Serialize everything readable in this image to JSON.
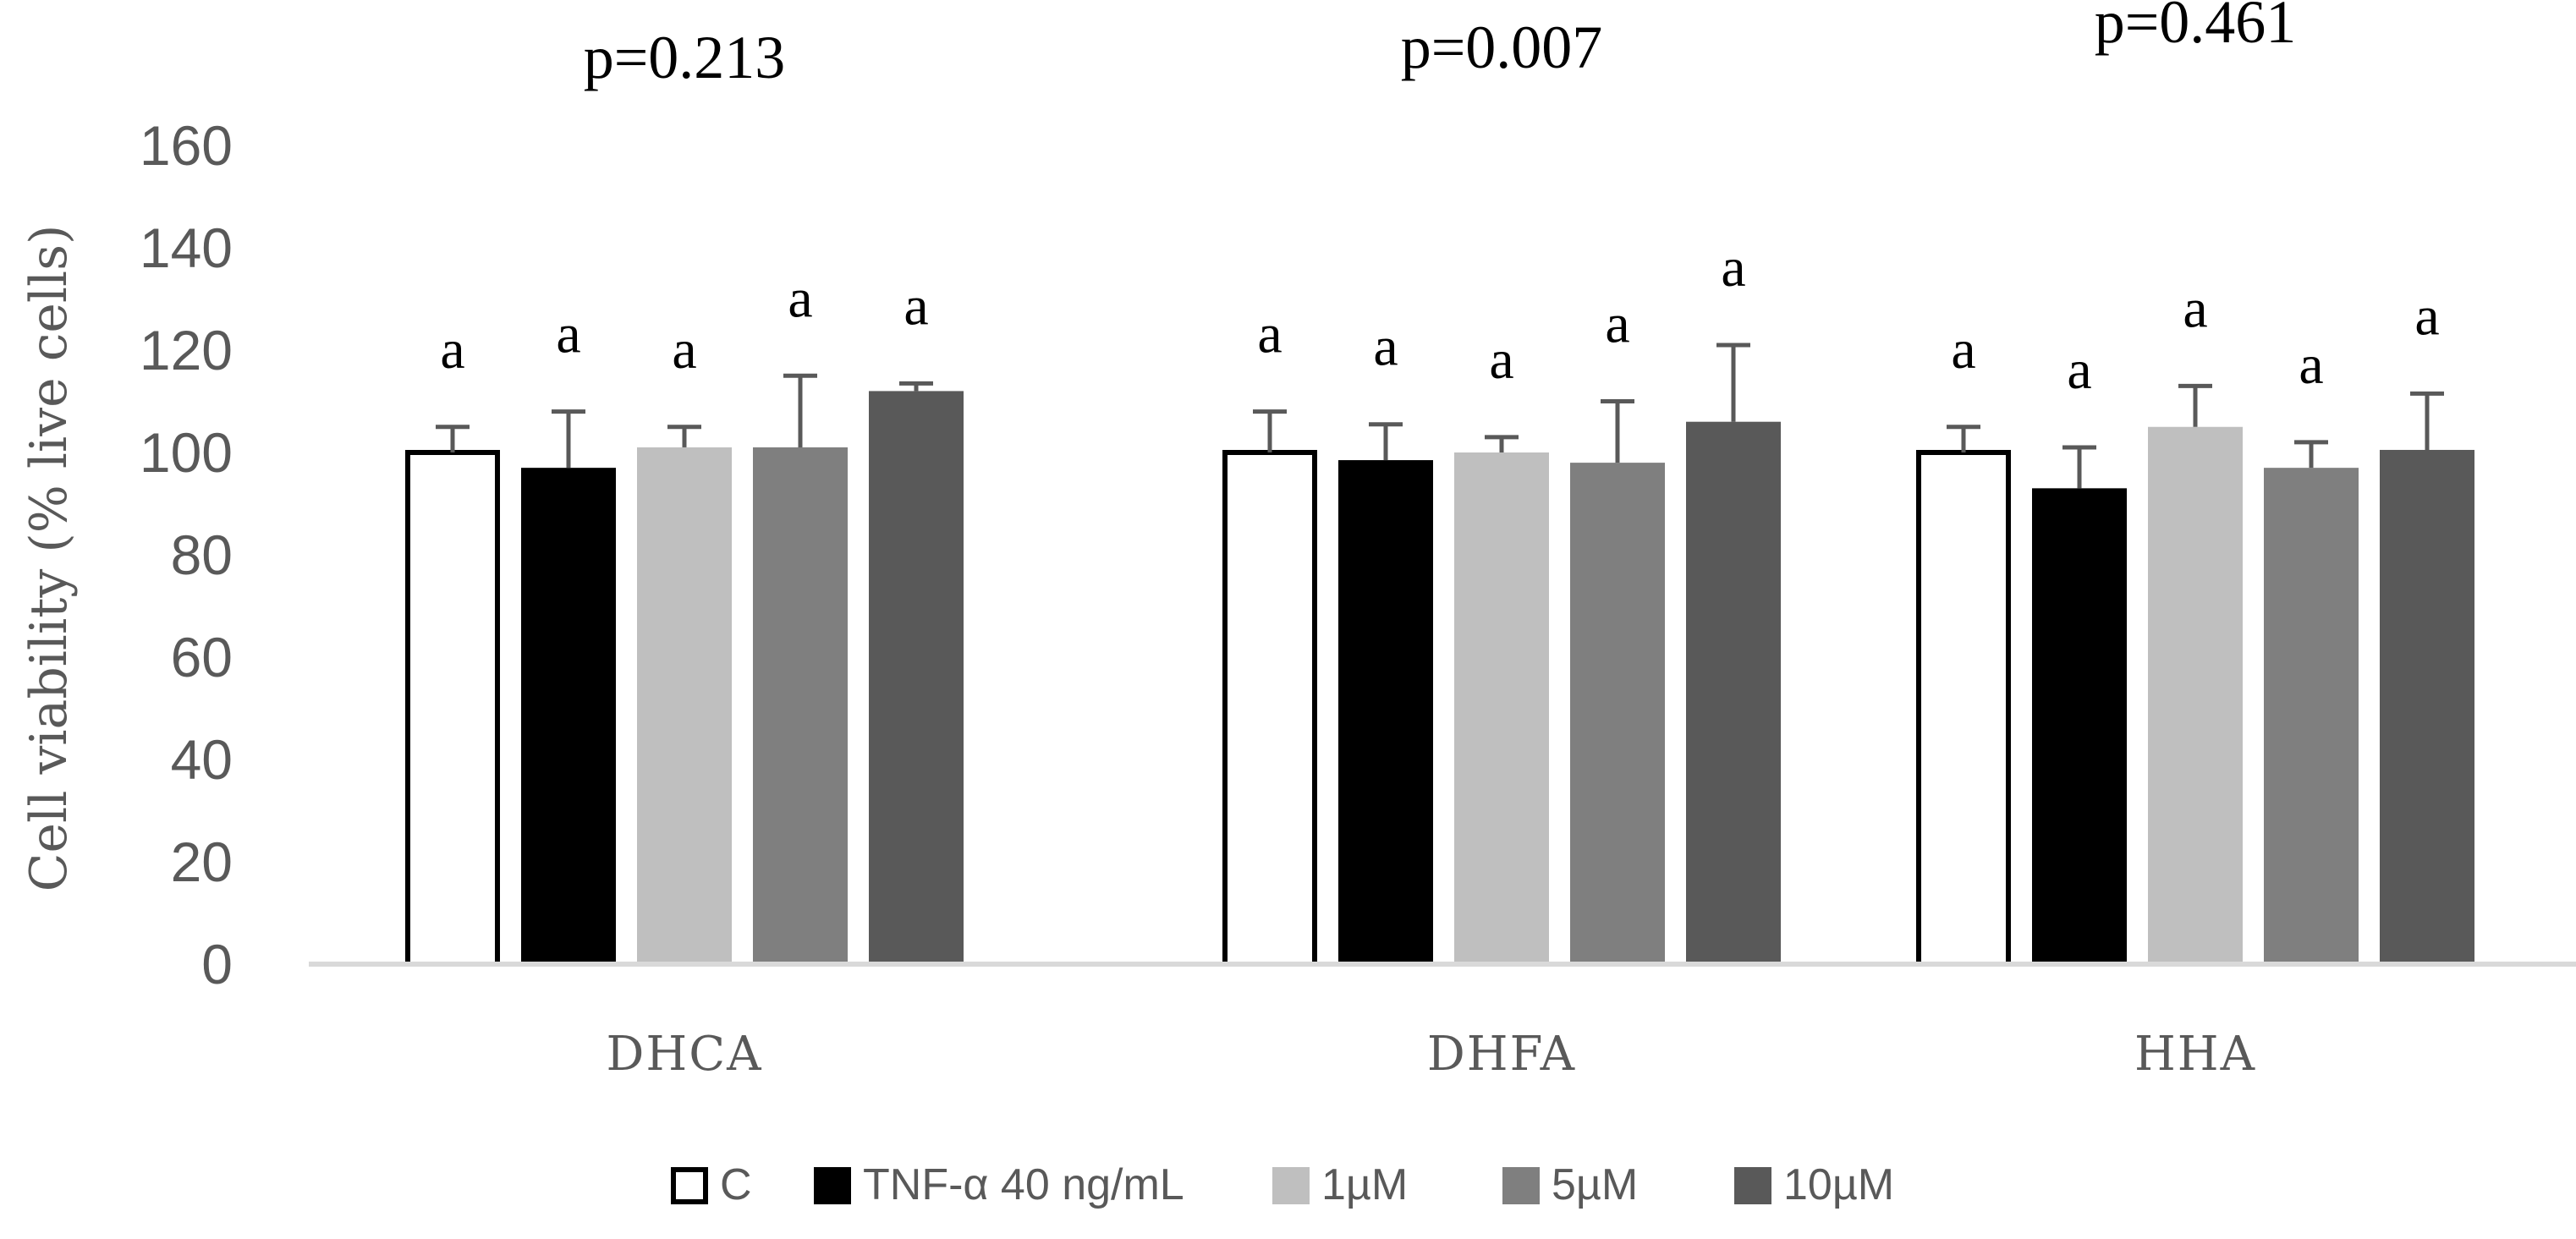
{
  "chart_data": {
    "type": "bar",
    "title": "",
    "xlabel": "",
    "ylabel": "Cell viability (% live cells)",
    "ylim": [
      0,
      160
    ],
    "yticks": [
      0,
      20,
      40,
      60,
      80,
      100,
      120,
      140,
      160
    ],
    "grid": false,
    "legend_position": "bottom",
    "categories": [
      "DHCA",
      "DHFA",
      "HHA"
    ],
    "p_values": [
      "p=0.213",
      "p=0.007",
      "p=0.461"
    ],
    "series": [
      {
        "name": "C",
        "color": "#ffffff",
        "outline": "#000000",
        "values": [
          100,
          100,
          100
        ],
        "errors": [
          5,
          8,
          5
        ],
        "labels": [
          "a",
          "a",
          "a"
        ]
      },
      {
        "name": "TNF-α 40 ng/mL",
        "color": "#000000",
        "values": [
          97,
          98.5,
          93
        ],
        "errors": [
          11,
          7,
          8
        ],
        "labels": [
          "a",
          "a",
          "a"
        ]
      },
      {
        "name": "1µM",
        "color": "#bfbfbf",
        "values": [
          101,
          100,
          105
        ],
        "errors": [
          4,
          3,
          8
        ],
        "labels": [
          "a",
          "a",
          "a"
        ]
      },
      {
        "name": "5µM",
        "color": "#7f7f7f",
        "values": [
          101,
          98,
          97
        ],
        "errors": [
          14,
          12,
          5
        ],
        "labels": [
          "a",
          "a",
          "a"
        ]
      },
      {
        "name": "10µM",
        "color": "#595959",
        "values": [
          112,
          106,
          100.5
        ],
        "errors": [
          1.5,
          15,
          11
        ],
        "labels": [
          "a",
          "a",
          "a"
        ]
      }
    ]
  }
}
